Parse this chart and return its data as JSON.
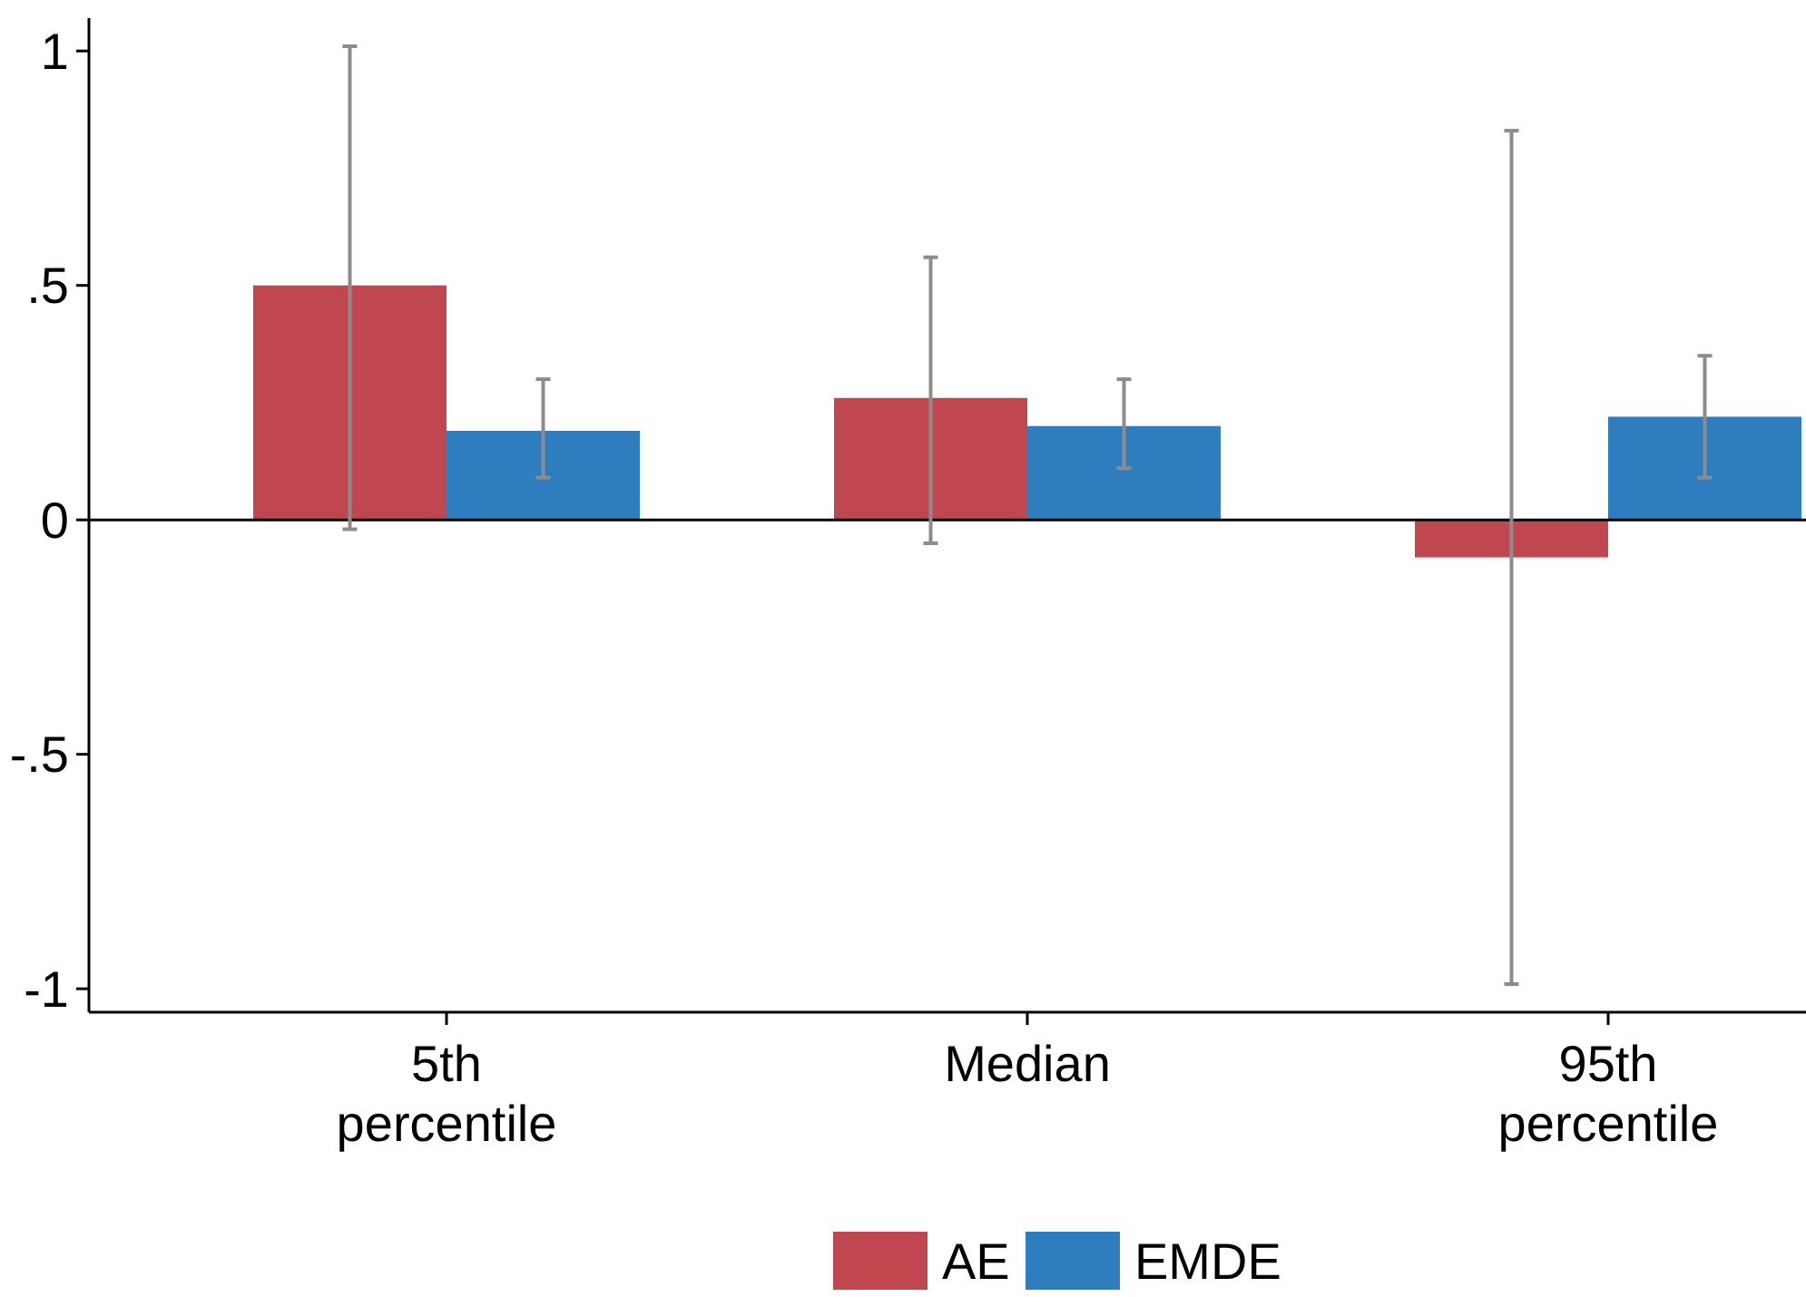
{
  "chart_data": {
    "type": "bar",
    "categories": [
      "5th\npercentile",
      "Median",
      "95th\npercentile"
    ],
    "series": [
      {
        "name": "AE",
        "color": "#c0474f",
        "values": [
          0.5,
          0.26,
          -0.08
        ],
        "errors": [
          [
            -0.02,
            1.01
          ],
          [
            -0.05,
            0.56
          ],
          [
            -0.99,
            0.83
          ]
        ]
      },
      {
        "name": "EMDE",
        "color": "#2e7dbf",
        "values": [
          0.19,
          0.2,
          0.22
        ],
        "errors": [
          [
            0.09,
            0.3
          ],
          [
            0.11,
            0.3
          ],
          [
            0.09,
            0.35
          ]
        ]
      }
    ],
    "ylim": [
      -1.05,
      1.07
    ],
    "yticks": [
      {
        "value": -1,
        "label": "-1"
      },
      {
        "value": -0.5,
        "label": "-.5"
      },
      0,
      {
        "value": 0.5,
        "label": ".5"
      },
      1
    ],
    "ref_lines": [
      {
        "axis": "y",
        "value": 0,
        "color": "#000000"
      }
    ],
    "grid": false,
    "legend": "bottom"
  }
}
